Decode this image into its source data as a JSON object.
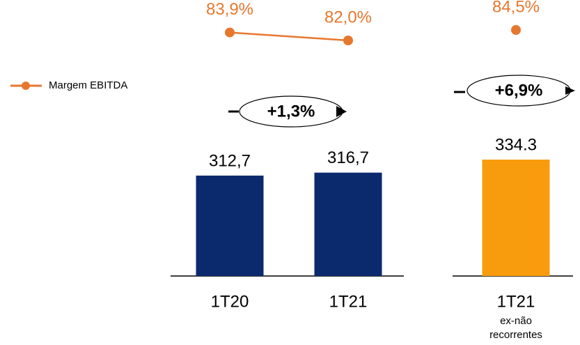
{
  "chart_data": {
    "type": "bar",
    "categories": [
      "1T20",
      "1T21",
      null,
      "1T21"
    ],
    "sublabels": [
      null,
      null,
      null,
      "ex-não recorrentes"
    ],
    "series": [
      {
        "type": "bar",
        "colors": [
          "#0b2a6e",
          "#0b2a6e",
          null,
          "#f89c0e"
        ],
        "values": [
          312.7,
          316.7,
          null,
          334.3
        ],
        "value_labels": [
          "312,7",
          "316,7",
          null,
          "334.3"
        ]
      },
      {
        "type": "line",
        "name": "Margem EBITDA",
        "color": "#e8772e",
        "axis": "y2",
        "values": [
          83.9,
          82.0,
          null,
          84.5
        ],
        "value_labels": [
          "83,9%",
          "82,0%",
          null,
          "84,5%"
        ]
      }
    ],
    "ylim": [
      177,
      550
    ],
    "y2lim": [
      70,
      90
    ],
    "annotations": [
      "+1,3%",
      "+6,9%"
    ],
    "legend": "left"
  }
}
